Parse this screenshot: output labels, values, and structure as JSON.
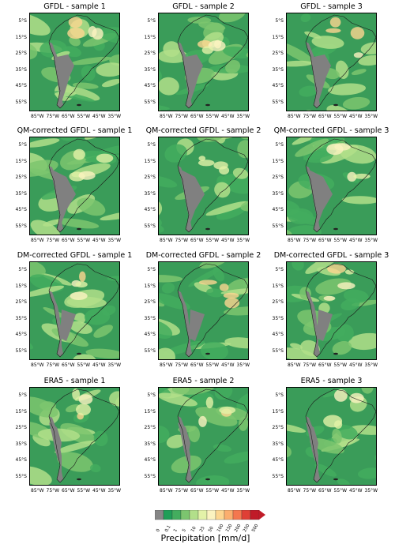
{
  "figure": {
    "panels": [
      {
        "title": "GFDL - sample 1"
      },
      {
        "title": "GFDL - sample 2"
      },
      {
        "title": "GFDL - sample 3"
      },
      {
        "title": "QM-corrected GFDL - sample 1"
      },
      {
        "title": "QM-corrected GFDL - sample 2"
      },
      {
        "title": "QM-corrected GFDL - sample 3"
      },
      {
        "title": "DM-corrected GFDL - sample 1"
      },
      {
        "title": "DM-corrected GFDL - sample 2"
      },
      {
        "title": "DM-corrected GFDL - sample 3"
      },
      {
        "title": "ERA5 - sample 1"
      },
      {
        "title": "ERA5 - sample 2"
      },
      {
        "title": "ERA5 - sample 3"
      }
    ],
    "lat_ticks": [
      "5°S",
      "15°S",
      "25°S",
      "35°S",
      "45°S",
      "55°S"
    ],
    "lon_ticks": [
      "85°W",
      "75°W",
      "65°W",
      "55°W",
      "45°W",
      "35°W"
    ]
  },
  "chart_data": {
    "type": "heatmap",
    "title": "",
    "colorbar": {
      "label": "Precipitation [mm/d]",
      "ticks": [
        "0",
        "0.1",
        "1",
        "5",
        "10",
        "25",
        "50",
        "100",
        "150",
        "200",
        "250",
        "500"
      ],
      "colors": [
        "#868686",
        "#1f9e57",
        "#43ad5e",
        "#7cc56f",
        "#b2df8a",
        "#e3f2a8",
        "#fbf3c0",
        "#fdd690",
        "#fbae6e",
        "#f4774f",
        "#df3f36",
        "#c01b28"
      ],
      "extend": "max"
    },
    "land_color": "#808080",
    "base_color": "#3a9c59"
  }
}
